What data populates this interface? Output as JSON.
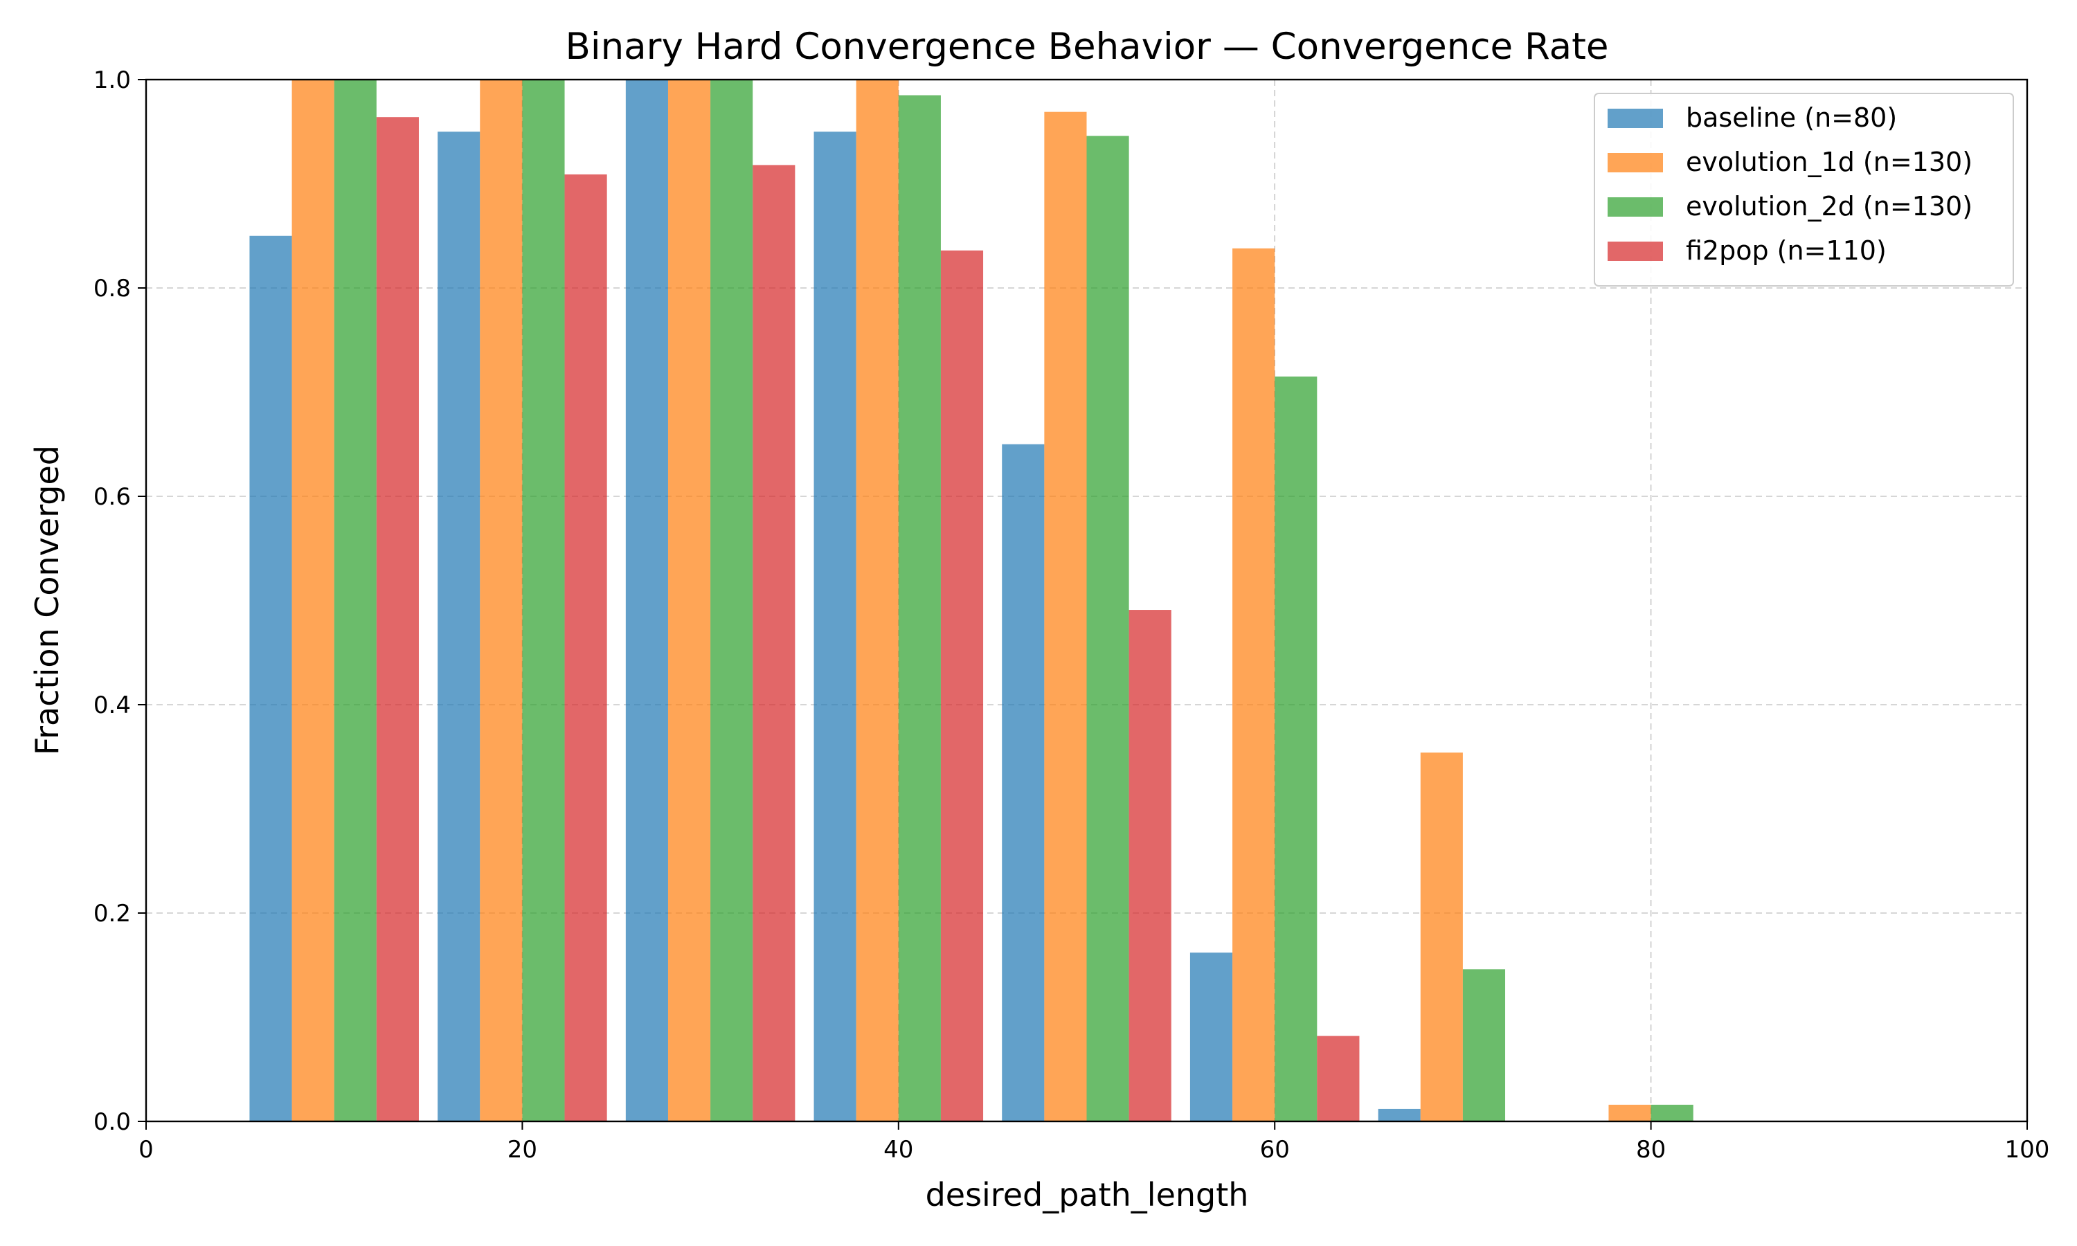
{
  "chart_data": {
    "type": "bar",
    "title": "Binary Hard Convergence Behavior — Convergence Rate",
    "xlabel": "desired_path_length",
    "ylabel": "Fraction Converged",
    "xlim": [
      0,
      100
    ],
    "ylim": [
      0,
      1.0
    ],
    "x_ticks": [
      "0",
      "20",
      "40",
      "60",
      "80",
      "100"
    ],
    "y_ticks": [
      "0.0",
      "0.2",
      "0.4",
      "0.6",
      "0.8",
      "1.0"
    ],
    "grid": true,
    "legend_position": "top-right",
    "x": [
      10,
      20,
      30,
      40,
      50,
      60,
      70,
      80
    ],
    "series": [
      {
        "name": "baseline (n=80)",
        "color": "#1f77b4",
        "values": [
          0.85,
          0.95,
          1.0,
          0.95,
          0.65,
          0.162,
          0.012,
          0.0
        ]
      },
      {
        "name": "evolution_1d (n=130)",
        "color": "#ff7f0e",
        "values": [
          1.0,
          1.0,
          1.0,
          1.0,
          0.969,
          0.838,
          0.354,
          0.016
        ]
      },
      {
        "name": "evolution_2d (n=130)",
        "color": "#2ca02c",
        "values": [
          1.0,
          1.0,
          1.0,
          0.985,
          0.946,
          0.715,
          0.146,
          0.016
        ]
      },
      {
        "name": "fi2pop (n=110)",
        "color": "#d62728",
        "values": [
          0.964,
          0.909,
          0.918,
          0.836,
          0.491,
          0.082,
          0.0,
          0.0
        ]
      }
    ]
  }
}
